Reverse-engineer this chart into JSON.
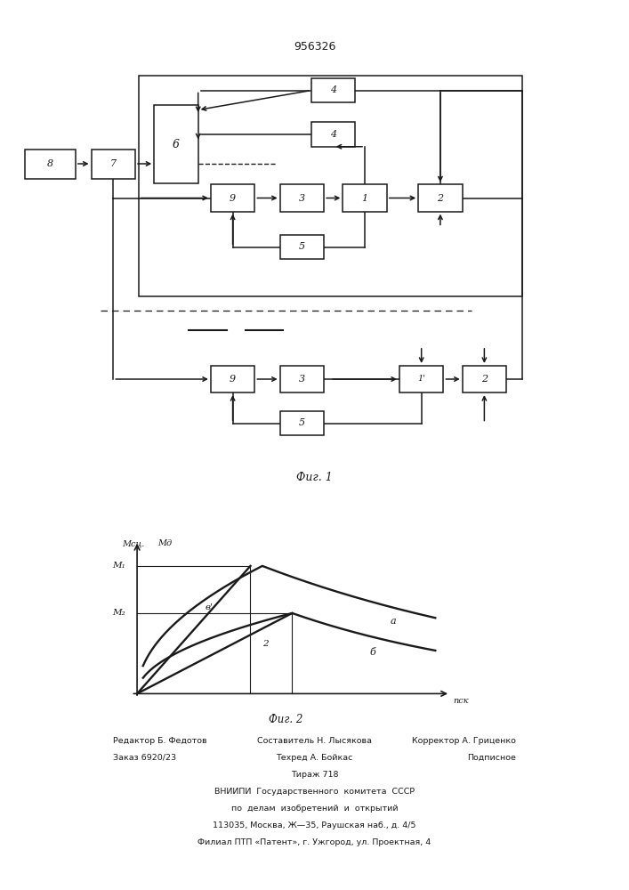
{
  "title": "956326",
  "fig1_caption": "Фиг. 1",
  "fig2_caption": "Фиг. 2",
  "bg_color": "#ffffff",
  "line_color": "#1a1a1a"
}
